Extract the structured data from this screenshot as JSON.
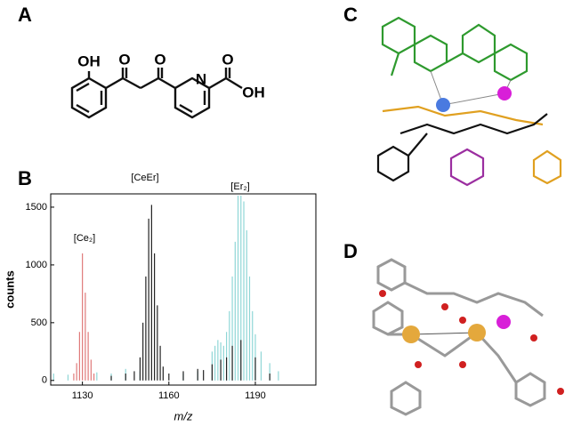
{
  "panel_labels": [
    "A",
    "B",
    "C",
    "D"
  ],
  "structure_labels": [
    "OH",
    "O",
    "O",
    "N",
    "O",
    "OH"
  ],
  "chart_data": {
    "type": "stick",
    "x_label": "m/z",
    "y_label": "counts",
    "annotations": [
      "[Ce₂]",
      "[CeEr]",
      "[Er₂]"
    ],
    "xlim": [
      1119,
      1211
    ],
    "xticks": [
      1130,
      1160,
      1190
    ],
    "ylim": [
      -40,
      1615
    ],
    "yticks": [
      0,
      500,
      1000,
      1500
    ],
    "series": [
      {
        "color": "#8fd6d6",
        "x": [
          1120,
          1125,
          1135,
          1140,
          1145,
          1150,
          1165,
          1170,
          1175,
          1176,
          1177,
          1178,
          1179,
          1180,
          1181,
          1182,
          1183,
          1184,
          1185,
          1186,
          1187,
          1188,
          1189,
          1190,
          1192,
          1195,
          1198
        ],
        "values": [
          60,
          50,
          70,
          60,
          100,
          80,
          60,
          80,
          250,
          300,
          350,
          330,
          300,
          420,
          600,
          900,
          1200,
          1600,
          1600,
          1550,
          1300,
          900,
          600,
          400,
          250,
          150,
          80
        ]
      },
      {
        "color": "#e07a7a",
        "x": [
          1127,
          1128,
          1129,
          1130,
          1131,
          1132,
          1133,
          1134
        ],
        "values": [
          60,
          150,
          420,
          1100,
          760,
          420,
          180,
          60
        ]
      },
      {
        "color": "#222222",
        "x": [
          1140,
          1145,
          1148,
          1150,
          1151,
          1152,
          1153,
          1154,
          1155,
          1156,
          1157,
          1158,
          1160,
          1165,
          1170,
          1172,
          1175,
          1178,
          1180,
          1182,
          1185,
          1190,
          1195
        ],
        "values": [
          40,
          60,
          80,
          200,
          500,
          900,
          1400,
          1520,
          1100,
          650,
          300,
          120,
          60,
          80,
          100,
          90,
          140,
          180,
          200,
          300,
          350,
          200,
          60
        ]
      }
    ]
  }
}
